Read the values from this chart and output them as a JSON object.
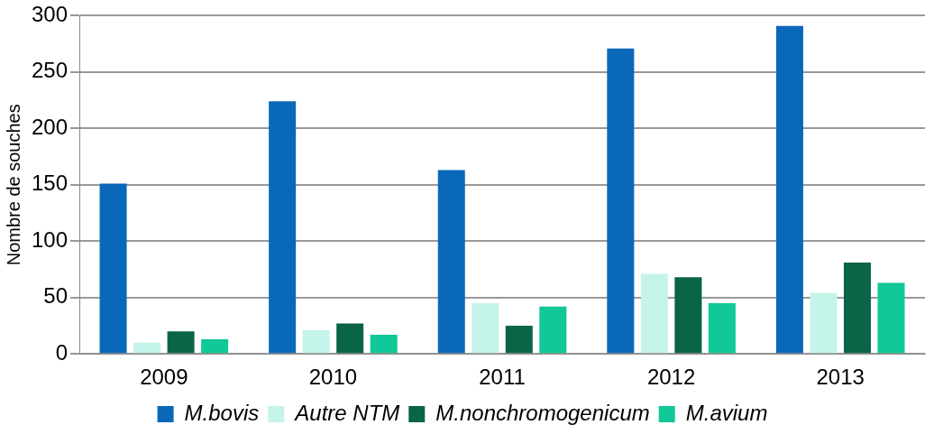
{
  "chart_data": {
    "type": "bar",
    "ylabel": "Nombre de souches",
    "categories": [
      "2009",
      "2010",
      "2011",
      "2012",
      "2013"
    ],
    "series": [
      {
        "name": "M.bovis",
        "color": "#0a68b8",
        "values": [
          151,
          224,
          163,
          271,
          291
        ]
      },
      {
        "name": "Autre NTM",
        "color": "#c4f4ea",
        "values": [
          10,
          21,
          45,
          71,
          54
        ]
      },
      {
        "name": "M.nonchromogenicum",
        "color": "#0a6448",
        "values": [
          20,
          27,
          25,
          68,
          81
        ]
      },
      {
        "name": "M.avium",
        "color": "#10c898",
        "values": [
          13,
          17,
          42,
          45,
          63
        ]
      }
    ],
    "ylim": [
      0,
      300
    ],
    "yticks": [
      0,
      50,
      100,
      150,
      200,
      250,
      300
    ],
    "grid": "y",
    "legend": "bottom"
  }
}
